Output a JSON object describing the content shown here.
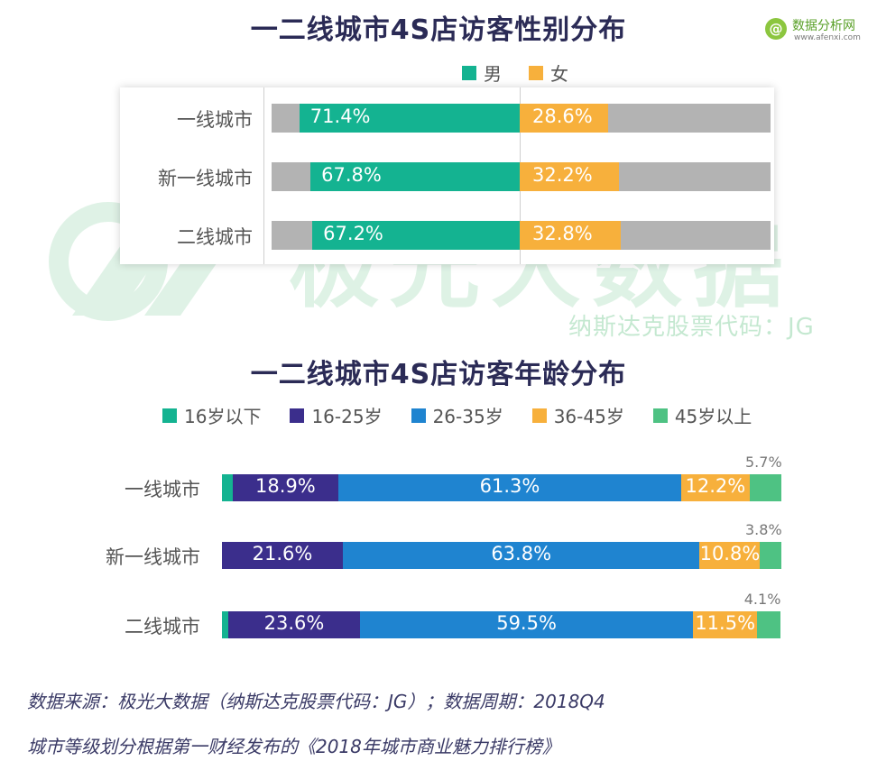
{
  "logo": {
    "mark": "@",
    "name": "数据分析网",
    "url": "www.afenxi.com"
  },
  "watermark": {
    "brand": "极光大数据",
    "sub": "纳斯达克股票代码：JG"
  },
  "gender_chart": {
    "type": "bar",
    "stacked": true,
    "orientation": "horizontal",
    "title": "一二线城市4S店访客性别分布",
    "categories": [
      "一线城市",
      "新一线城市",
      "二线城市"
    ],
    "series": [
      {
        "name": "男",
        "color": "#14b391",
        "values": [
          71.4,
          67.8,
          67.2
        ],
        "labels": [
          "71.4%",
          "67.8%",
          "67.2%"
        ]
      },
      {
        "name": "女",
        "color": "#f7b03c",
        "values": [
          28.6,
          32.2,
          32.8
        ],
        "labels": [
          "28.6%",
          "32.2%",
          "32.8%"
        ]
      }
    ],
    "background_color": "#b3b3b3",
    "xlim": [
      -100,
      100
    ]
  },
  "age_chart": {
    "type": "bar",
    "stacked": true,
    "orientation": "horizontal",
    "title": "一二线城市4S店访客年龄分布",
    "categories": [
      "一线城市",
      "新一线城市",
      "二线城市"
    ],
    "series": [
      {
        "name": "16岁以下",
        "color": "#14b391",
        "values": [
          1.9,
          0.0,
          1.1
        ],
        "labels": [
          "",
          "",
          ""
        ]
      },
      {
        "name": "16-25岁",
        "color": "#3b2e8c",
        "values": [
          18.9,
          21.6,
          23.6
        ],
        "labels": [
          "18.9%",
          "21.6%",
          "23.6%"
        ]
      },
      {
        "name": "26-35岁",
        "color": "#1f84d0",
        "values": [
          61.3,
          63.8,
          59.5
        ],
        "labels": [
          "61.3%",
          "63.8%",
          "59.5%"
        ]
      },
      {
        "name": "36-45岁",
        "color": "#f7b03c",
        "values": [
          12.2,
          10.8,
          11.5
        ],
        "labels": [
          "12.2%",
          "10.8%",
          "11.5%"
        ]
      },
      {
        "name": "45岁以上",
        "color": "#4ec283",
        "values": [
          5.7,
          3.8,
          4.1
        ],
        "labels": [
          "5.7%",
          "3.8%",
          "4.1%"
        ]
      }
    ],
    "xlim": [
      0,
      100
    ]
  },
  "footnotes": {
    "source": "数据来源：极光大数据（纳斯达克股票代码：JG）；数据周期：2018Q4",
    "note": "城市等级划分根据第一财经发布的《2018年城市商业魅力排行榜》"
  }
}
